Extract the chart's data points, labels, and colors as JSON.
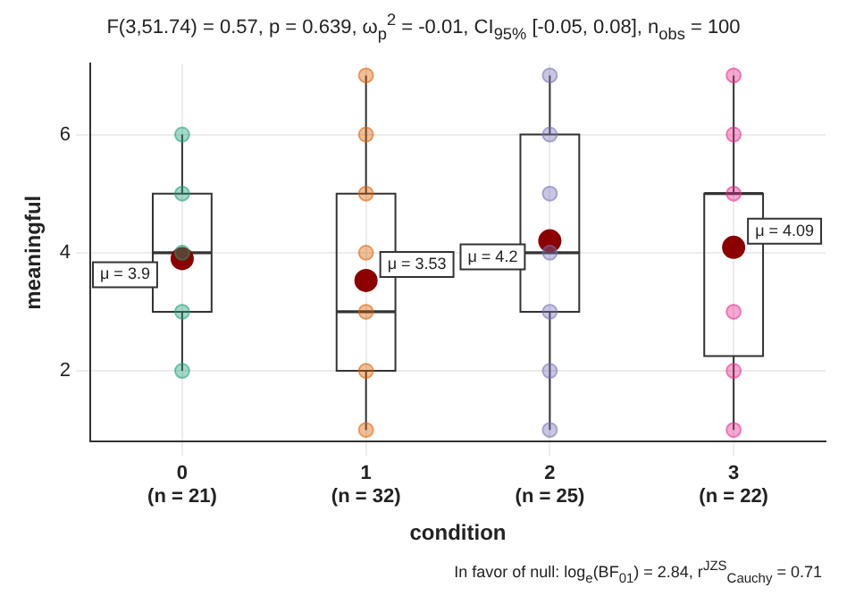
{
  "chart_data": {
    "type": "box",
    "title": "F(3,51.74) = 0.57, p = 0.639, ω$_{p}$$^{2}$ = -0.01, CI$_{95%}$ [-0.05, 0.08], n$_{obs}$ = 100",
    "xlabel": "condition",
    "ylabel": "meaningful",
    "categories": [
      "0\n(n = 21)",
      "1\n(n = 32)",
      "2\n(n = 25)",
      "3\n(n = 22)"
    ],
    "boxes": [
      {
        "low": 2,
        "q1": 3,
        "median": 4,
        "q3": 5,
        "high": 6
      },
      {
        "low": 1,
        "q1": 2,
        "median": 3,
        "q3": 5,
        "high": 7
      },
      {
        "low": 1,
        "q1": 3,
        "median": 4,
        "q3": 6,
        "high": 7
      },
      {
        "low": 1,
        "q1": 2.25,
        "median": 5,
        "q3": 5,
        "high": 7
      }
    ],
    "series": [
      {
        "type": "scatter",
        "color": "#1b9e77",
        "x": [
          "0\n(n = 21)",
          "0\n(n = 21)",
          "0\n(n = 21)",
          "0\n(n = 21)",
          "0\n(n = 21)"
        ],
        "values": [
          6,
          5,
          4,
          3,
          2
        ]
      },
      {
        "type": "scatter",
        "color": "#d95f02",
        "x": [
          "1\n(n = 32)",
          "1\n(n = 32)",
          "1\n(n = 32)",
          "1\n(n = 32)",
          "1\n(n = 32)",
          "1\n(n = 32)",
          "1\n(n = 32)"
        ],
        "values": [
          7,
          6,
          5,
          4,
          3,
          2,
          1
        ]
      },
      {
        "type": "scatter",
        "color": "#7570b3",
        "x": [
          "2\n(n = 25)",
          "2\n(n = 25)",
          "2\n(n = 25)",
          "2\n(n = 25)",
          "2\n(n = 25)",
          "2\n(n = 25)",
          "2\n(n = 25)"
        ],
        "values": [
          7,
          6,
          5,
          4,
          3,
          2,
          1
        ]
      },
      {
        "type": "scatter",
        "color": "#e7298a",
        "x": [
          "3\n(n = 22)",
          "3\n(n = 22)",
          "3\n(n = 22)",
          "3\n(n = 22)",
          "3\n(n = 22)",
          "3\n(n = 22)"
        ],
        "values": [
          7,
          6,
          5,
          3,
          2,
          1
        ]
      },
      {
        "type": "scatter",
        "color": "#8b0000",
        "x": [
          "0\n(n = 21)",
          "1\n(n = 32)",
          "2\n(n = 25)",
          "3\n(n = 22)"
        ],
        "values": [
          3.9,
          3.53,
          4.2,
          4.09
        ],
        "value_labels": [
          "μ = 3.9",
          "μ = 3.53",
          "μ = 4.2",
          "μ = 4.09"
        ]
      }
    ],
    "ylim": [
      0.8,
      7.2
    ],
    "yticks": [
      2,
      4,
      6
    ],
    "grid": true,
    "marker": "circle",
    "annotations": [
      "In favor of null: log$_{e}$(BF$_{01}$) = 2.84, r$^{JZS}$$_{Cauchy}$ = 0.71"
    ]
  }
}
